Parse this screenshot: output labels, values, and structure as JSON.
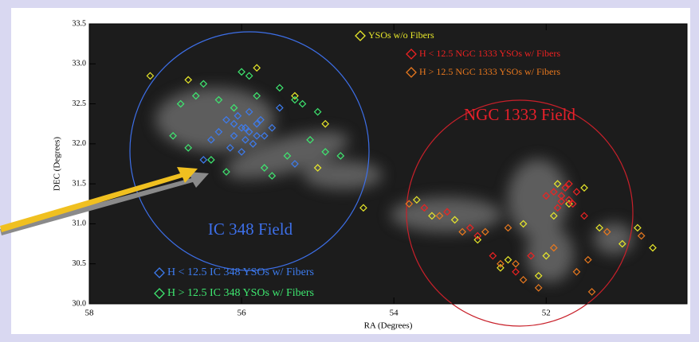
{
  "chart_data": {
    "type": "scatter",
    "xlabel": "RA (Degrees)",
    "ylabel": "DEC (Degrees)",
    "xlim": [
      58,
      50.15
    ],
    "ylim": [
      30.0,
      33.5
    ],
    "xticks": [
      58,
      56,
      54,
      52
    ],
    "yticks": [
      {
        "value": 30,
        "label": "30.0"
      },
      30.5,
      {
        "value": 31,
        "label": "31.0"
      },
      31.5,
      {
        "value": 32,
        "label": "32.0"
      },
      32.5,
      {
        "value": 33,
        "label": "33.0"
      },
      33.5
    ],
    "annotations": [
      {
        "text": "IC 348 Field",
        "color": "#3d6fe8"
      },
      {
        "text": "NGC 1333 Field",
        "color": "#e8202a"
      }
    ],
    "series": [
      {
        "name": "YSOs w/o Fibers",
        "color": "#e8e82a",
        "x": [
          57.2,
          56.7,
          55.8,
          55.3,
          54.9,
          55.0,
          54.4,
          53.7,
          53.5,
          53.2,
          52.9,
          52.5,
          52.1,
          51.9,
          51.7,
          51.5,
          51.3,
          51.0,
          50.8,
          50.6,
          52.6,
          52.3,
          51.85,
          52.0
        ],
        "values": [
          32.85,
          32.8,
          32.95,
          32.6,
          32.25,
          31.7,
          31.2,
          31.3,
          31.1,
          31.05,
          30.8,
          30.55,
          30.35,
          31.1,
          31.25,
          31.45,
          30.95,
          30.75,
          30.95,
          30.7,
          30.45,
          31.0,
          31.5,
          30.6
        ]
      },
      {
        "name": "H < 12.5 NGC 1333 YSOs w/ Fibers",
        "color": "#ee2222",
        "x": [
          51.8,
          51.7,
          51.9,
          51.75,
          51.65,
          51.85,
          52.0,
          51.6,
          51.7,
          51.8,
          53.6,
          53.3,
          53.0,
          52.9,
          52.7,
          52.4,
          52.2,
          51.5
        ],
        "values": [
          31.35,
          31.3,
          31.4,
          31.45,
          31.25,
          31.2,
          31.35,
          31.4,
          31.5,
          31.28,
          31.2,
          31.15,
          30.95,
          30.85,
          30.6,
          30.4,
          30.6,
          31.1
        ]
      },
      {
        "name": "H > 12.5 NGC 1333 YSOs w/ Fibers",
        "color": "#e8781e",
        "x": [
          53.8,
          53.4,
          53.1,
          52.8,
          52.6,
          52.4,
          52.1,
          51.9,
          51.6,
          51.4,
          51.2,
          52.5,
          52.3,
          51.45,
          50.75
        ],
        "values": [
          31.25,
          31.1,
          30.9,
          30.9,
          30.5,
          30.5,
          30.2,
          30.7,
          30.4,
          30.15,
          30.9,
          30.95,
          30.3,
          30.55,
          30.85
        ]
      },
      {
        "name": "H < 12.5 IC 348 YSOs w/ Fibers",
        "color": "#3d7cf0",
        "x": [
          55.9,
          56.0,
          56.1,
          55.8,
          55.95,
          56.2,
          55.7,
          56.05,
          55.85,
          56.15,
          55.9,
          56.3,
          55.75,
          56.0,
          55.6,
          56.4,
          55.5,
          55.95,
          56.1,
          55.8,
          55.3,
          56.5
        ],
        "values": [
          32.15,
          32.2,
          32.1,
          32.25,
          32.05,
          32.3,
          32.1,
          32.35,
          32.0,
          31.95,
          32.4,
          32.15,
          32.3,
          31.9,
          32.2,
          32.05,
          32.45,
          32.2,
          32.25,
          32.1,
          31.75,
          31.8
        ]
      },
      {
        "name": "H > 12.5 IC 348 YSOs w/ Fibers",
        "color": "#3ee870",
        "x": [
          56.8,
          56.6,
          56.3,
          55.5,
          55.2,
          55.0,
          56.9,
          56.7,
          55.4,
          55.7,
          56.2,
          55.1,
          54.7,
          56.5,
          55.9,
          55.6,
          56.0,
          55.3,
          54.9,
          56.4,
          56.1,
          55.8
        ],
        "values": [
          32.5,
          32.6,
          32.55,
          32.7,
          32.5,
          32.4,
          32.1,
          31.95,
          31.85,
          31.7,
          31.65,
          32.05,
          31.85,
          32.75,
          32.85,
          31.6,
          32.9,
          32.55,
          31.9,
          31.8,
          32.45,
          32.6
        ]
      }
    ]
  }
}
